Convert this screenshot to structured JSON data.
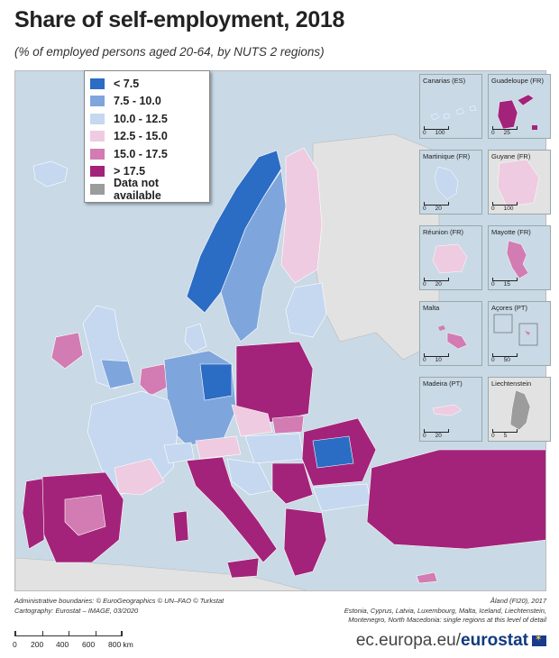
{
  "title": "Share of self-employment, 2018",
  "subtitle": "(% of employed persons aged 20-64, by NUTS 2 regions)",
  "legend": {
    "items": [
      {
        "label": "< 7.5",
        "color": "#2b6cc4"
      },
      {
        "label": "7.5 - 10.0",
        "color": "#7fa6dc"
      },
      {
        "label": "10.0 - 12.5",
        "color": "#c5d8f0"
      },
      {
        "label": "12.5 - 15.0",
        "color": "#eecbe0"
      },
      {
        "label": "15.0 - 17.5",
        "color": "#d27cb3"
      },
      {
        "label": "> 17.5",
        "color": "#a3237a"
      },
      {
        "label": "Data not available",
        "color": "#9c9c9c"
      }
    ]
  },
  "insets": [
    {
      "name": "Canarias (ES)",
      "scale": [
        "0",
        "100"
      ]
    },
    {
      "name": "Guadeloupe (FR)",
      "scale": [
        "0",
        "25"
      ]
    },
    {
      "name": "Martinique (FR)",
      "scale": [
        "0",
        "20"
      ]
    },
    {
      "name": "Guyane (FR)",
      "scale": [
        "0",
        "100"
      ]
    },
    {
      "name": "Réunion (FR)",
      "scale": [
        "0",
        "20"
      ]
    },
    {
      "name": "Mayotte (FR)",
      "scale": [
        "0",
        "15"
      ]
    },
    {
      "name": "Malta",
      "scale": [
        "0",
        "10"
      ]
    },
    {
      "name": "Açores (PT)",
      "scale": [
        "0",
        "50"
      ]
    },
    {
      "name": "Madeira (PT)",
      "scale": [
        "0",
        "20"
      ]
    },
    {
      "name": "Liechtenstein",
      "scale": [
        "0",
        "5"
      ]
    }
  ],
  "footer": {
    "boundaries": "Administrative boundaries: © EuroGeographics © UN–FAO © Turkstat",
    "cartography": "Cartography: Eurostat – IMAGE, 03/2020",
    "aland": "Åland (FI20), 2017",
    "note_line1": "Estonia, Cyprus, Latvia, Luxembourg, Malta, Iceland, Liechtenstein,",
    "note_line2": "Montenegro, North Macedonia: single regions at this level of detail"
  },
  "scale": {
    "labels": [
      "0",
      "200",
      "400",
      "600",
      "800 km"
    ]
  },
  "brand": {
    "prefix": "ec.europa.eu/",
    "name": "eurostat"
  }
}
